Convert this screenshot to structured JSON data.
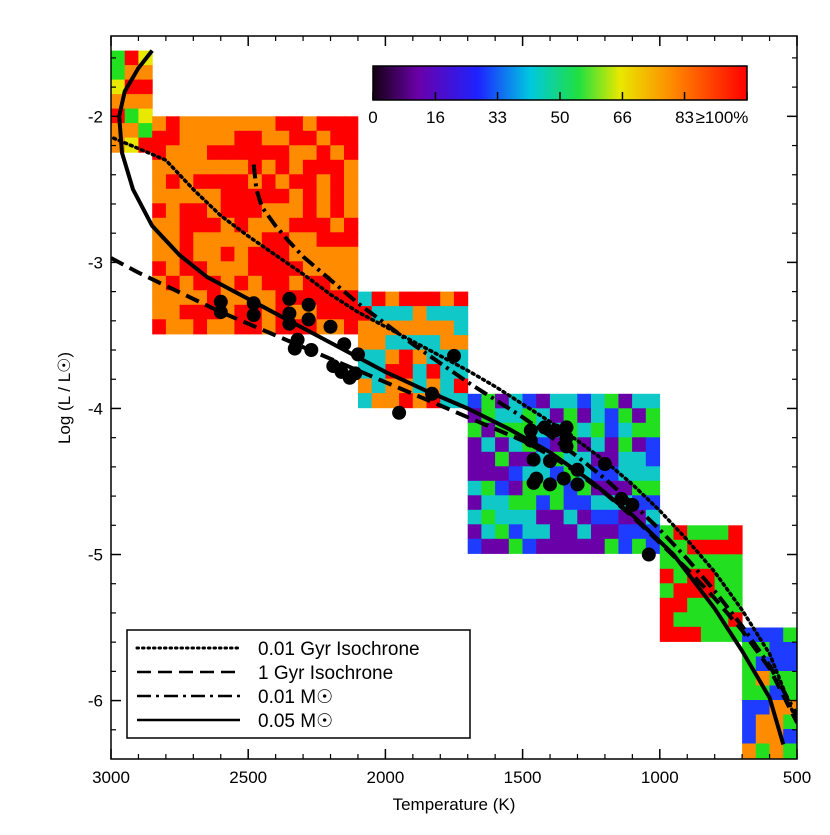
{
  "chart_data": {
    "type": "heatmap",
    "xlabel": "Temperature (K)",
    "ylabel": "Log (L / L☉)",
    "xlim": [
      3000,
      500
    ],
    "ylim": [
      -6.4,
      -1.45
    ],
    "x_ticks": [
      "3000",
      "2500",
      "2000",
      "1500",
      "1000",
      "500"
    ],
    "x_tick_values": [
      3000,
      2500,
      2000,
      1500,
      1000,
      500
    ],
    "y_ticks": [
      "-2",
      "-3",
      "-4",
      "-5",
      "-6"
    ],
    "y_tick_values": [
      -2,
      -3,
      -4,
      -5,
      -6
    ],
    "colorbar": {
      "tick_labels": [
        "0",
        "16",
        "33",
        "50",
        "66",
        "83",
        "≥100%"
      ],
      "tick_values": [
        0,
        16.7,
        33.3,
        50,
        66.7,
        83.3,
        100
      ],
      "placement": "top-right"
    },
    "legend": {
      "placement": "bottom-left",
      "entries": [
        {
          "label": "0.01 Gyr Isochrone",
          "style": "dotted"
        },
        {
          "label": "1 Gyr Isochrone",
          "style": "dashed"
        },
        {
          "label": "0.01 M☉",
          "style": "dash-dot"
        },
        {
          "label": "0.05 M☉",
          "style": "solid"
        }
      ]
    },
    "series": [
      {
        "name": "0.01 Gyr Isochrone",
        "style": "dotted",
        "x": [
          2990,
          2900,
          2800,
          2700,
          2600,
          2500,
          2400,
          2300,
          2200,
          2100,
          2000,
          1900,
          1800,
          1700,
          1600,
          1500,
          1400,
          1300,
          1200,
          1100,
          1000,
          900,
          800,
          700,
          600,
          500
        ],
        "y": [
          -2.15,
          -2.22,
          -2.3,
          -2.5,
          -2.68,
          -2.82,
          -2.95,
          -3.08,
          -3.22,
          -3.34,
          -3.44,
          -3.54,
          -3.64,
          -3.74,
          -3.85,
          -3.97,
          -4.09,
          -4.22,
          -4.36,
          -4.52,
          -4.7,
          -4.9,
          -5.12,
          -5.38,
          -5.68,
          -6.15
        ]
      },
      {
        "name": "1 Gyr Isochrone",
        "style": "dashed",
        "x": [
          3000,
          2900,
          2800,
          2700,
          2600,
          2500,
          2400,
          2300,
          2200,
          2100,
          2000,
          1900,
          1800,
          1700,
          1600,
          1500,
          1400,
          1300,
          1200,
          1100,
          1000,
          900,
          800,
          700,
          600,
          500
        ],
        "y": [
          -2.97,
          -3.07,
          -3.16,
          -3.25,
          -3.34,
          -3.42,
          -3.5,
          -3.58,
          -3.66,
          -3.74,
          -3.82,
          -3.9,
          -3.98,
          -4.06,
          -4.14,
          -4.22,
          -4.32,
          -4.44,
          -4.58,
          -4.74,
          -4.92,
          -5.1,
          -5.3,
          -5.52,
          -5.78,
          -6.15
        ]
      },
      {
        "name": "0.01 M☉",
        "style": "dash-dot",
        "x": [
          2480,
          2470,
          2450,
          2400,
          2350,
          2300,
          2200,
          2100,
          2000,
          1900,
          1800,
          1700,
          1600,
          1500,
          1400,
          1300,
          1200,
          1100,
          1000,
          900,
          800,
          700,
          600,
          500
        ],
        "y": [
          -2.33,
          -2.5,
          -2.62,
          -2.75,
          -2.86,
          -2.96,
          -3.12,
          -3.28,
          -3.42,
          -3.56,
          -3.69,
          -3.82,
          -3.94,
          -4.06,
          -4.19,
          -4.33,
          -4.48,
          -4.65,
          -4.83,
          -5.03,
          -5.25,
          -5.49,
          -5.76,
          -6.1
        ]
      },
      {
        "name": "0.05 M☉",
        "style": "solid",
        "x": [
          2850,
          2900,
          2950,
          2970,
          2960,
          2920,
          2850,
          2750,
          2650,
          2550,
          2450,
          2300,
          2150,
          2000,
          1850,
          1700,
          1550,
          1400,
          1250,
          1100,
          950,
          800,
          700,
          600,
          550
        ],
        "y": [
          -1.55,
          -1.67,
          -1.83,
          -2.0,
          -2.25,
          -2.5,
          -2.75,
          -2.95,
          -3.1,
          -3.2,
          -3.3,
          -3.45,
          -3.6,
          -3.75,
          -3.88,
          -4.0,
          -4.14,
          -4.3,
          -4.5,
          -4.73,
          -5.0,
          -5.37,
          -5.66,
          -5.98,
          -6.3
        ]
      }
    ],
    "points": {
      "x": [
        2600,
        2600,
        2480,
        2480,
        2350,
        2350,
        2350,
        2280,
        2280,
        2200,
        2320,
        2330,
        2270,
        2150,
        2100,
        2190,
        2160,
        2130,
        2110,
        1950,
        1830,
        1750,
        1470,
        1470,
        1420,
        1380,
        1340,
        1340,
        1460,
        1450,
        1400,
        1350,
        1300,
        1460,
        1400,
        1340,
        1300,
        1200,
        1140,
        1100,
        1040
      ],
      "y": [
        -3.27,
        -3.34,
        -3.28,
        -3.36,
        -3.25,
        -3.35,
        -3.42,
        -3.29,
        -3.39,
        -3.44,
        -3.53,
        -3.59,
        -3.6,
        -3.56,
        -3.63,
        -3.71,
        -3.75,
        -3.79,
        -3.76,
        -4.03,
        -3.9,
        -3.64,
        -4.15,
        -4.22,
        -4.13,
        -4.15,
        -4.13,
        -4.2,
        -4.35,
        -4.48,
        -4.36,
        -4.48,
        -4.52,
        -4.51,
        -4.52,
        -4.26,
        -4.42,
        -4.38,
        -4.62,
        -4.66,
        -5.0
      ]
    },
    "heatmap_bands": [
      {
        "x_range": [
          3000,
          2850
        ],
        "y_range": [
          -1.55,
          -2.2
        ],
        "mix": [
          "green",
          "yellow",
          "orange",
          "red"
        ]
      },
      {
        "x_range": [
          2850,
          2100
        ],
        "y_range": [
          -2.0,
          -3.4
        ],
        "mix": [
          "red",
          "orange"
        ]
      },
      {
        "x_range": [
          2100,
          1700
        ],
        "y_range": [
          -3.2,
          -3.95
        ],
        "mix": [
          "red",
          "orange",
          "cyan"
        ]
      },
      {
        "x_range": [
          1700,
          1000
        ],
        "y_range": [
          -3.9,
          -4.9
        ],
        "mix": [
          "cyan",
          "blue",
          "green",
          "purple"
        ]
      },
      {
        "x_range": [
          1000,
          700
        ],
        "y_range": [
          -4.8,
          -5.6
        ],
        "mix": [
          "red",
          "green"
        ]
      },
      {
        "x_range": [
          700,
          500
        ],
        "y_range": [
          -5.5,
          -6.35
        ],
        "mix": [
          "green",
          "blue",
          "orange"
        ]
      }
    ]
  }
}
